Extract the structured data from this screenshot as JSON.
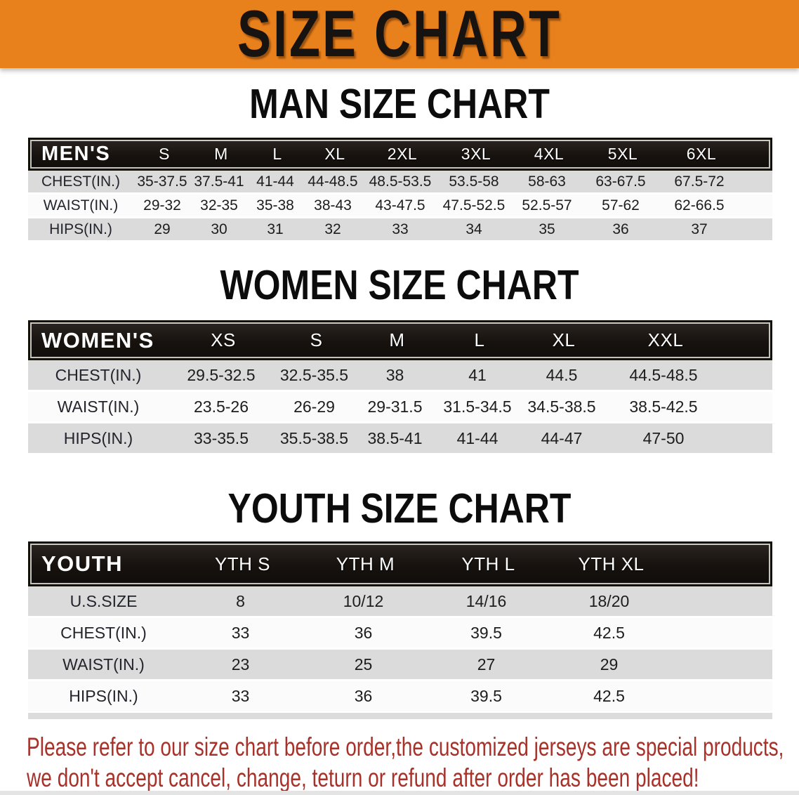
{
  "banner": {
    "title": "SIZE CHART",
    "bg_color": "#e8801c",
    "text_color": "#171310"
  },
  "sections": [
    {
      "heading": "MAN SIZE CHART",
      "table": {
        "header_label": "MEN'S",
        "columns": [
          "S",
          "M",
          "L",
          "XL",
          "2XL",
          "3XL",
          "4XL",
          "5XL",
          "6XL"
        ],
        "rows": [
          {
            "label": "CHEST(IN.)",
            "values": [
              "35-37.5",
              "37.5-41",
              "41-44",
              "44-48.5",
              "48.5-53.5",
              "53.5-58",
              "58-63",
              "63-67.5",
              "67.5-72"
            ]
          },
          {
            "label": "WAIST(IN.)",
            "values": [
              "29-32",
              "32-35",
              "35-38",
              "38-43",
              "43-47.5",
              "47.5-52.5",
              "52.5-57",
              "57-62",
              "62-66.5"
            ]
          },
          {
            "label": "HIPS(IN.)",
            "values": [
              "29",
              "30",
              "31",
              "32",
              "33",
              "34",
              "35",
              "36",
              "37"
            ]
          }
        ]
      }
    },
    {
      "heading": "WOMEN SIZE CHART",
      "table": {
        "header_label": "WOMEN'S",
        "columns": [
          "XS",
          "S",
          "M",
          "L",
          "XL",
          "XXL"
        ],
        "rows": [
          {
            "label": "CHEST(IN.)",
            "values": [
              "29.5-32.5",
              "32.5-35.5",
              "38",
              "41",
              "44.5",
              "44.5-48.5"
            ]
          },
          {
            "label": "WAIST(IN.)",
            "values": [
              "23.5-26",
              "26-29",
              "29-31.5",
              "31.5-34.5",
              "34.5-38.5",
              "38.5-42.5"
            ]
          },
          {
            "label": "HIPS(IN.)",
            "values": [
              "33-35.5",
              "35.5-38.5",
              "38.5-41",
              "41-44",
              "44-47",
              "47-50"
            ]
          }
        ]
      }
    },
    {
      "heading": "YOUTH SIZE CHART",
      "table": {
        "header_label": "YOUTH",
        "columns": [
          "YTH S",
          "YTH M",
          "YTH L",
          "YTH XL"
        ],
        "rows": [
          {
            "label": "U.S.SIZE",
            "values": [
              "8",
              "10/12",
              "14/16",
              "18/20"
            ]
          },
          {
            "label": "CHEST(IN.)",
            "values": [
              "33",
              "36",
              "39.5",
              "42.5"
            ]
          },
          {
            "label": "WAIST(IN.)",
            "values": [
              "23",
              "25",
              "27",
              "29"
            ]
          },
          {
            "label": "HIPS(IN.)",
            "values": [
              "33",
              "36",
              "39.5",
              "42.5"
            ]
          }
        ]
      }
    }
  ],
  "disclaimer": {
    "line1": "Please refer to our size chart before order,the customized jerseys are special products,",
    "line2": "we don't accept cancel, change, teturn or refund after order has been placed!",
    "color": "#a8322a"
  },
  "style_colors": {
    "header_band": "#17120e",
    "shaded_row": "#dbdbdb"
  }
}
